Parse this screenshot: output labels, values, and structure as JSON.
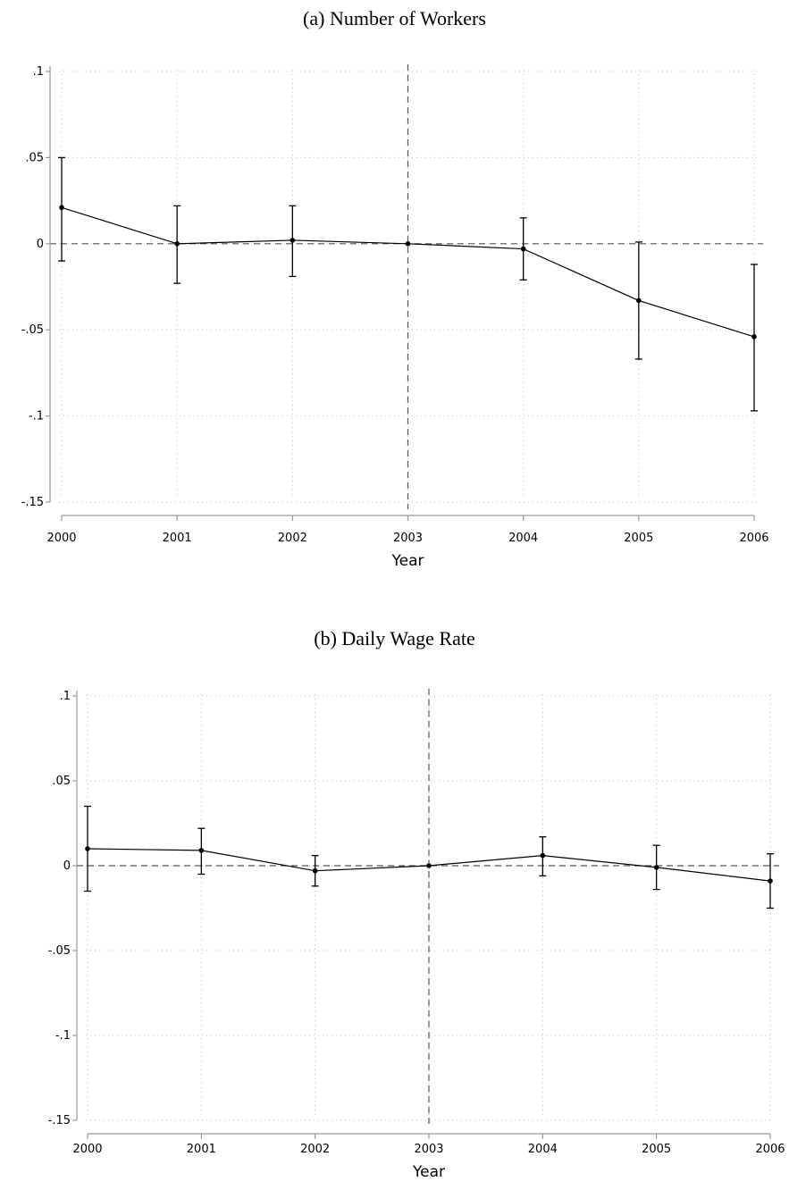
{
  "chart_data": [
    {
      "type": "line",
      "title": "(a) Number of Workers",
      "xlabel": "Year",
      "ylabel": "",
      "x": [
        2000,
        2001,
        2002,
        2003,
        2004,
        2005,
        2006
      ],
      "xticks": [
        "2000",
        "2001",
        "2002",
        "2003",
        "2004",
        "2005",
        "2006"
      ],
      "yticks": [
        0.1,
        0.05,
        0,
        -0.05,
        -0.1,
        -0.15
      ],
      "ytick_labels": [
        ".1",
        ".05",
        "0",
        "-.05",
        "-.1",
        "-.15"
      ],
      "ylim": [
        -0.15,
        0.1
      ],
      "xlim": [
        2000,
        2006
      ],
      "reference_lines": {
        "x": 2003,
        "y": 0
      },
      "grid": true,
      "series": [
        {
          "values": [
            0.021,
            0.0,
            0.002,
            0.0,
            -0.003,
            -0.033,
            -0.054
          ],
          "ci_low": [
            -0.01,
            -0.023,
            -0.019,
            0.0,
            -0.021,
            -0.067,
            -0.097
          ],
          "ci_high": [
            0.05,
            0.022,
            0.022,
            0.0,
            0.015,
            0.001,
            -0.012
          ]
        }
      ],
      "colors": {
        "line": "#000000",
        "grid": "#bdbdbd",
        "axis": "#999999",
        "ref": "#555555"
      }
    },
    {
      "type": "line",
      "title": "(b) Daily Wage Rate",
      "xlabel": "Year",
      "ylabel": "",
      "x": [
        2000,
        2001,
        2002,
        2003,
        2004,
        2005,
        2006
      ],
      "xticks": [
        "2000",
        "2001",
        "2002",
        "2003",
        "2004",
        "2005",
        "2006"
      ],
      "yticks": [
        0.1,
        0.05,
        0,
        -0.05,
        -0.1,
        -0.15
      ],
      "ytick_labels": [
        ".1",
        ".05",
        "0",
        "-.05",
        "-.1",
        "-.15"
      ],
      "ylim": [
        -0.15,
        0.1
      ],
      "xlim": [
        2000,
        2006
      ],
      "reference_lines": {
        "x": 2003,
        "y": 0
      },
      "grid": true,
      "series": [
        {
          "values": [
            0.01,
            0.009,
            -0.003,
            0.0,
            0.006,
            -0.001,
            -0.009
          ],
          "ci_low": [
            -0.015,
            -0.005,
            -0.012,
            0.0,
            -0.006,
            -0.014,
            -0.025
          ],
          "ci_high": [
            0.035,
            0.022,
            0.006,
            0.0,
            0.017,
            0.012,
            0.007
          ]
        }
      ],
      "colors": {
        "line": "#000000",
        "grid": "#bdbdbd",
        "axis": "#999999",
        "ref": "#555555"
      }
    }
  ]
}
